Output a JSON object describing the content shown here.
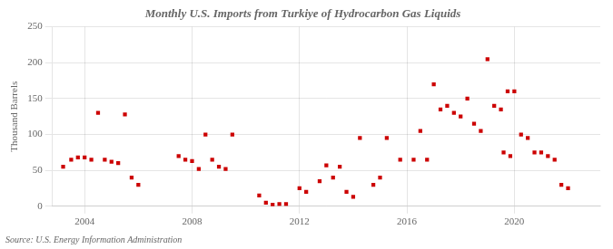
{
  "chart_data": {
    "type": "scatter",
    "title": "Monthly U.S. Imports from Turkiye of Hydrocarbon Gas Liquids",
    "ylabel": "Thousand Barrels",
    "source": "Source: U.S. Energy Information Administration",
    "x": [
      2003.2,
      2003.5,
      2003.75,
      2004.0,
      2004.25,
      2004.5,
      2004.75,
      2005.0,
      2005.25,
      2005.5,
      2005.75,
      2006.0,
      2007.5,
      2007.75,
      2008.0,
      2008.25,
      2008.5,
      2008.75,
      2009.0,
      2009.25,
      2009.5,
      2010.5,
      2010.75,
      2011.0,
      2011.25,
      2011.5,
      2012.0,
      2012.25,
      2012.75,
      2013.0,
      2013.25,
      2013.5,
      2013.75,
      2014.0,
      2014.25,
      2014.75,
      2015.0,
      2015.25,
      2015.75,
      2016.25,
      2016.5,
      2016.75,
      2017.0,
      2017.25,
      2017.5,
      2017.75,
      2018.0,
      2018.25,
      2018.5,
      2018.75,
      2019.0,
      2019.25,
      2019.5,
      2019.75,
      2020.0,
      2020.25,
      2020.5,
      2020.75,
      2021.0,
      2021.25,
      2021.5,
      2021.75,
      2019.6,
      2019.85,
      2022.0
    ],
    "values": [
      55,
      65,
      68,
      68,
      65,
      130,
      65,
      62,
      60,
      128,
      40,
      30,
      70,
      65,
      63,
      52,
      100,
      65,
      55,
      52,
      100,
      15,
      5,
      2,
      3,
      3,
      25,
      20,
      35,
      57,
      40,
      55,
      20,
      13,
      95,
      30,
      40,
      95,
      65,
      65,
      105,
      65,
      170,
      135,
      140,
      130,
      125,
      150,
      115,
      105,
      205,
      140,
      135,
      160,
      160,
      100,
      95,
      75,
      75,
      70,
      65,
      30,
      75,
      70,
      25
    ],
    "color": "#cc0000",
    "marker": "square",
    "xlim": [
      2002.8,
      2023.2
    ],
    "xticks": [
      2004,
      2008,
      2012,
      2016,
      2020
    ],
    "ylim": [
      0,
      250
    ],
    "yticks": [
      0,
      50,
      100,
      150,
      200,
      250
    ],
    "grid": true
  }
}
